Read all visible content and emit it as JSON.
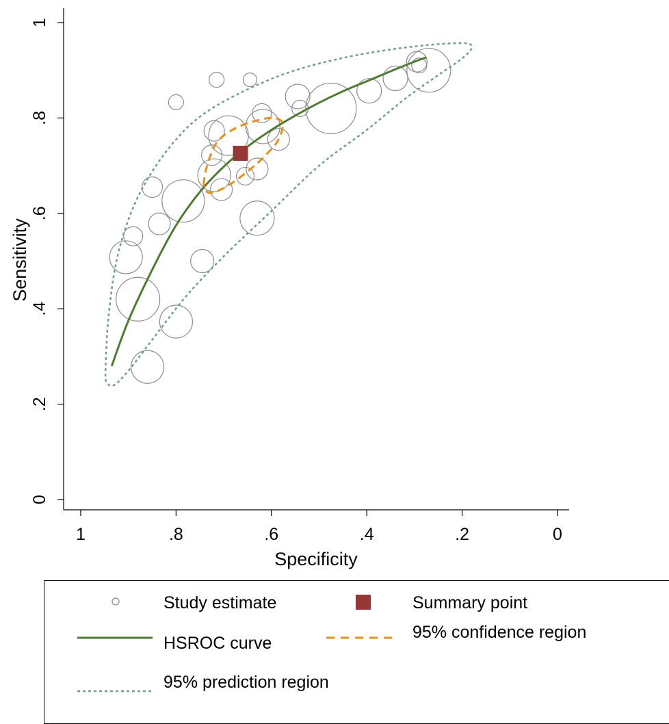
{
  "chart_data": {
    "type": "scatter",
    "xlabel": "Specificity",
    "ylabel": "Sensitivity",
    "xlim": [
      1,
      0
    ],
    "ylim": [
      0,
      1
    ],
    "x_axis_reversed": true,
    "x_ticks": [
      {
        "value": 1,
        "label": "1"
      },
      {
        "value": 0.8,
        "label": ".8"
      },
      {
        "value": 0.6,
        "label": ".6"
      },
      {
        "value": 0.4,
        "label": ".4"
      },
      {
        "value": 0.2,
        "label": ".2"
      },
      {
        "value": 0,
        "label": "0"
      }
    ],
    "y_ticks": [
      {
        "value": 0,
        "label": "0"
      },
      {
        "value": 0.2,
        "label": ".2"
      },
      {
        "value": 0.4,
        "label": ".4"
      },
      {
        "value": 0.6,
        "label": ".6"
      },
      {
        "value": 0.8,
        "label": ".8"
      },
      {
        "value": 1,
        "label": "1"
      }
    ],
    "grid": false,
    "legend_position": "bottom",
    "series": [
      {
        "name": "Study estimate",
        "kind": "bubbles",
        "color": "#8c8c8c",
        "points": [
          {
            "specificity": 0.715,
            "sensitivity": 0.88,
            "weight": 0.35
          },
          {
            "specificity": 0.645,
            "sensitivity": 0.88,
            "weight": 0.3
          },
          {
            "specificity": 0.8,
            "sensitivity": 0.833,
            "weight": 0.35
          },
          {
            "specificity": 0.545,
            "sensitivity": 0.845,
            "weight": 0.7
          },
          {
            "specificity": 0.54,
            "sensitivity": 0.82,
            "weight": 0.4
          },
          {
            "specificity": 0.475,
            "sensitivity": 0.82,
            "weight": 1.65
          },
          {
            "specificity": 0.395,
            "sensitivity": 0.857,
            "weight": 0.7
          },
          {
            "specificity": 0.34,
            "sensitivity": 0.883,
            "weight": 0.7
          },
          {
            "specificity": 0.295,
            "sensitivity": 0.918,
            "weight": 0.55
          },
          {
            "specificity": 0.29,
            "sensitivity": 0.91,
            "weight": 0.35
          },
          {
            "specificity": 0.27,
            "sensitivity": 0.9,
            "weight": 1.4
          },
          {
            "specificity": 0.62,
            "sensitivity": 0.81,
            "weight": 0.5
          },
          {
            "specificity": 0.618,
            "sensitivity": 0.782,
            "weight": 1.05
          },
          {
            "specificity": 0.585,
            "sensitivity": 0.755,
            "weight": 0.6
          },
          {
            "specificity": 0.72,
            "sensitivity": 0.773,
            "weight": 0.55
          },
          {
            "specificity": 0.69,
            "sensitivity": 0.763,
            "weight": 1.25
          },
          {
            "specificity": 0.725,
            "sensitivity": 0.722,
            "weight": 0.55
          },
          {
            "specificity": 0.72,
            "sensitivity": 0.68,
            "weight": 1.0
          },
          {
            "specificity": 0.705,
            "sensitivity": 0.65,
            "weight": 0.6
          },
          {
            "specificity": 0.655,
            "sensitivity": 0.678,
            "weight": 0.45
          },
          {
            "specificity": 0.63,
            "sensitivity": 0.693,
            "weight": 0.6
          },
          {
            "specificity": 0.63,
            "sensitivity": 0.59,
            "weight": 1.05
          },
          {
            "specificity": 0.85,
            "sensitivity": 0.655,
            "weight": 0.55
          },
          {
            "specificity": 0.785,
            "sensitivity": 0.626,
            "weight": 1.35
          },
          {
            "specificity": 0.835,
            "sensitivity": 0.578,
            "weight": 0.6
          },
          {
            "specificity": 0.89,
            "sensitivity": 0.552,
            "weight": 0.5
          },
          {
            "specificity": 0.905,
            "sensitivity": 0.508,
            "weight": 1.0
          },
          {
            "specificity": 0.745,
            "sensitivity": 0.5,
            "weight": 0.65
          },
          {
            "specificity": 0.88,
            "sensitivity": 0.42,
            "weight": 1.4
          },
          {
            "specificity": 0.8,
            "sensitivity": 0.373,
            "weight": 1.0
          },
          {
            "specificity": 0.86,
            "sensitivity": 0.278,
            "weight": 1.0
          }
        ]
      },
      {
        "name": "Summary point",
        "kind": "square",
        "color": "#953735",
        "points": [
          {
            "specificity": 0.665,
            "sensitivity": 0.726
          }
        ]
      },
      {
        "name": "HSROC curve",
        "kind": "line",
        "color": "#4f7b34",
        "points": [
          {
            "specificity": 0.935,
            "sensitivity": 0.28
          },
          {
            "specificity": 0.9,
            "sensitivity": 0.375
          },
          {
            "specificity": 0.85,
            "sensitivity": 0.482
          },
          {
            "specificity": 0.8,
            "sensitivity": 0.575
          },
          {
            "specificity": 0.75,
            "sensitivity": 0.645
          },
          {
            "specificity": 0.7,
            "sensitivity": 0.698
          },
          {
            "specificity": 0.65,
            "sensitivity": 0.74
          },
          {
            "specificity": 0.6,
            "sensitivity": 0.775
          },
          {
            "specificity": 0.55,
            "sensitivity": 0.805
          },
          {
            "specificity": 0.5,
            "sensitivity": 0.832
          },
          {
            "specificity": 0.45,
            "sensitivity": 0.856
          },
          {
            "specificity": 0.4,
            "sensitivity": 0.877
          },
          {
            "specificity": 0.35,
            "sensitivity": 0.898
          },
          {
            "specificity": 0.3,
            "sensitivity": 0.918
          },
          {
            "specificity": 0.275,
            "sensitivity": 0.927
          }
        ]
      },
      {
        "name": "95% confidence region",
        "kind": "closed-contour",
        "color": "#e4901c",
        "points": [
          {
            "specificity": 0.742,
            "sensitivity": 0.66
          },
          {
            "specificity": 0.735,
            "sensitivity": 0.7
          },
          {
            "specificity": 0.715,
            "sensitivity": 0.748
          },
          {
            "specificity": 0.682,
            "sensitivity": 0.775
          },
          {
            "specificity": 0.64,
            "sensitivity": 0.792
          },
          {
            "specificity": 0.6,
            "sensitivity": 0.8
          },
          {
            "specificity": 0.577,
            "sensitivity": 0.79
          },
          {
            "specificity": 0.585,
            "sensitivity": 0.755
          },
          {
            "specificity": 0.612,
            "sensitivity": 0.722
          },
          {
            "specificity": 0.645,
            "sensitivity": 0.692
          },
          {
            "specificity": 0.685,
            "sensitivity": 0.662
          },
          {
            "specificity": 0.718,
            "sensitivity": 0.645
          },
          {
            "specificity": 0.735,
            "sensitivity": 0.645
          }
        ]
      },
      {
        "name": "95% prediction region",
        "kind": "closed-contour",
        "color": "#6f9c94",
        "points": [
          {
            "specificity": 0.948,
            "sensitivity": 0.27
          },
          {
            "specificity": 0.942,
            "sensitivity": 0.38
          },
          {
            "specificity": 0.925,
            "sensitivity": 0.5
          },
          {
            "specificity": 0.895,
            "sensitivity": 0.6
          },
          {
            "specificity": 0.855,
            "sensitivity": 0.68
          },
          {
            "specificity": 0.8,
            "sensitivity": 0.755
          },
          {
            "specificity": 0.74,
            "sensitivity": 0.81
          },
          {
            "specificity": 0.65,
            "sensitivity": 0.86
          },
          {
            "specificity": 0.55,
            "sensitivity": 0.9
          },
          {
            "specificity": 0.43,
            "sensitivity": 0.93
          },
          {
            "specificity": 0.3,
            "sensitivity": 0.95
          },
          {
            "specificity": 0.2,
            "sensitivity": 0.957
          },
          {
            "specificity": 0.18,
            "sensitivity": 0.948
          },
          {
            "specificity": 0.2,
            "sensitivity": 0.925
          },
          {
            "specificity": 0.25,
            "sensitivity": 0.89
          },
          {
            "specificity": 0.32,
            "sensitivity": 0.84
          },
          {
            "specificity": 0.4,
            "sensitivity": 0.775
          },
          {
            "specificity": 0.5,
            "sensitivity": 0.7
          },
          {
            "specificity": 0.6,
            "sensitivity": 0.605
          },
          {
            "specificity": 0.7,
            "sensitivity": 0.51
          },
          {
            "specificity": 0.78,
            "sensitivity": 0.425
          },
          {
            "specificity": 0.85,
            "sensitivity": 0.335
          },
          {
            "specificity": 0.9,
            "sensitivity": 0.27
          },
          {
            "specificity": 0.93,
            "sensitivity": 0.24
          },
          {
            "specificity": 0.945,
            "sensitivity": 0.245
          }
        ]
      }
    ]
  },
  "legend": {
    "study_estimate": "Study estimate",
    "summary_point": "Summary point",
    "hsroc_curve": "HSROC curve",
    "confidence_region": "95% confidence region",
    "prediction_region": "95% prediction region"
  }
}
